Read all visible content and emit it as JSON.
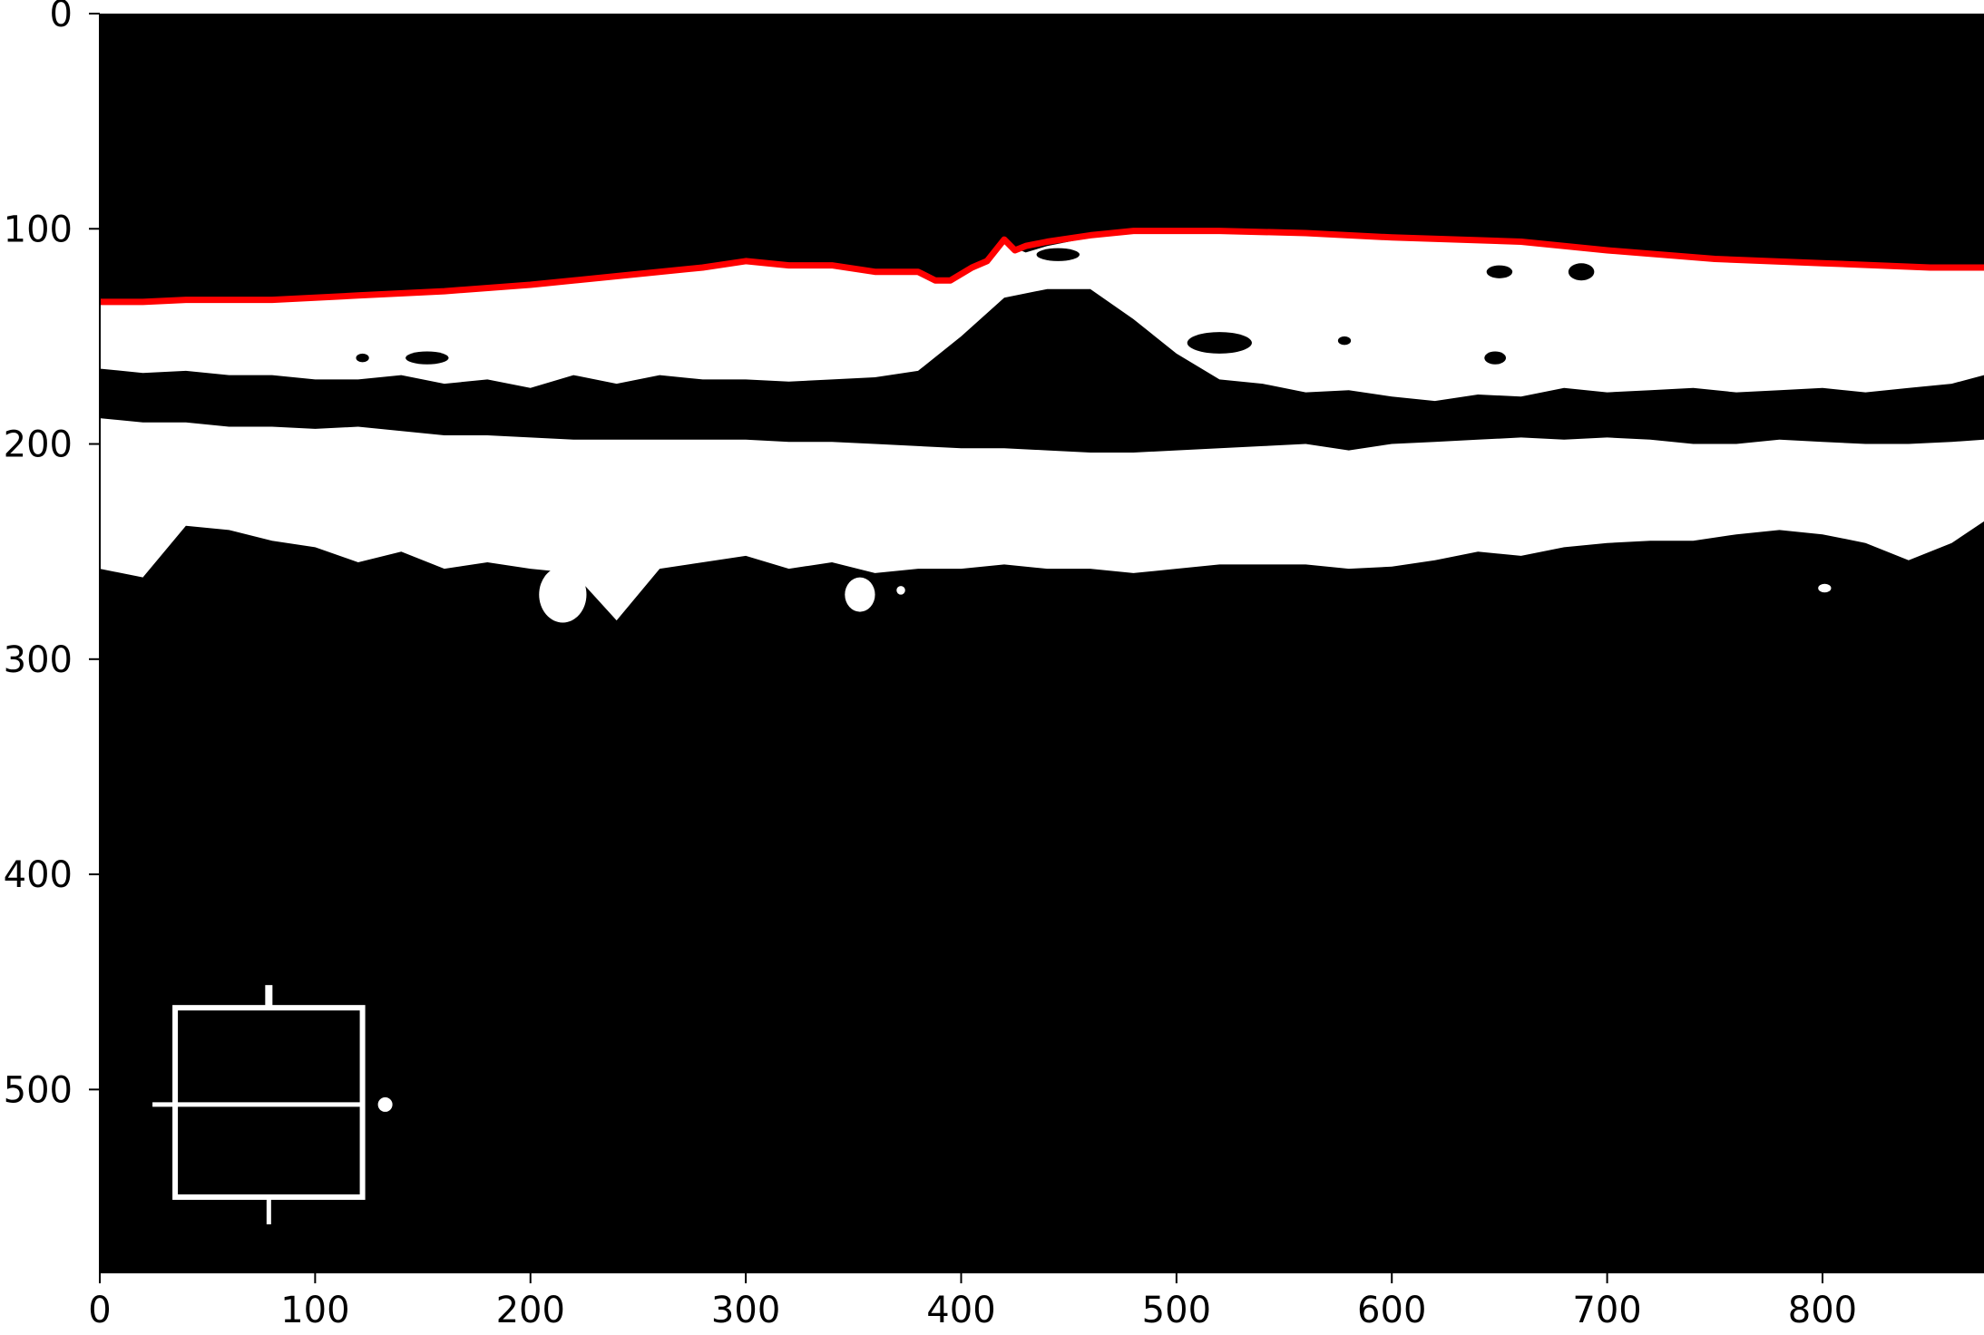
{
  "chart_data": {
    "type": "heatmap",
    "title": "",
    "xlabel": "",
    "ylabel": "",
    "xlim": [
      0,
      875
    ],
    "ylim": [
      585,
      0
    ],
    "y_inverted": true,
    "grid": false,
    "legend": "none",
    "colormap": [
      "#000000",
      "#ffffff"
    ],
    "xticks": [
      0,
      100,
      200,
      300,
      400,
      500,
      600,
      700,
      800
    ],
    "xtick_labels": [
      "0",
      "100",
      "200",
      "300",
      "400",
      "500",
      "600",
      "700",
      "800"
    ],
    "yticks": [
      0,
      100,
      200,
      300,
      400,
      500
    ],
    "ytick_labels": [
      "0",
      "100",
      "200",
      "300",
      "400",
      "500"
    ],
    "boundary_line": {
      "color": "#ff0000",
      "x": [
        0,
        20,
        40,
        80,
        120,
        160,
        200,
        240,
        280,
        300,
        320,
        340,
        360,
        380,
        388,
        395,
        405,
        412,
        420,
        425,
        430,
        440,
        460,
        480,
        520,
        560,
        600,
        660,
        700,
        750,
        800,
        850,
        875
      ],
      "y": [
        134,
        134,
        133,
        133,
        131,
        129,
        126,
        122,
        118,
        115,
        117,
        117,
        120,
        120,
        124,
        124,
        118,
        115,
        105,
        110,
        108,
        106,
        103,
        101,
        101,
        102,
        104,
        106,
        110,
        114,
        116,
        118,
        118
      ]
    },
    "regions": [
      {
        "label": "upper white band",
        "value": 1,
        "top_x": [
          0,
          40,
          80,
          120,
          160,
          200,
          240,
          280,
          300,
          320,
          340,
          360,
          380,
          395,
          410,
          420,
          430,
          440,
          460,
          480,
          520,
          560,
          600,
          660,
          700,
          750,
          800,
          850,
          875
        ],
        "top_y": [
          135,
          134,
          134,
          132,
          130,
          127,
          123,
          119,
          116,
          118,
          118,
          121,
          121,
          124,
          117,
          107,
          111,
          108,
          104,
          102,
          102,
          103,
          105,
          107,
          111,
          115,
          117,
          119,
          119
        ],
        "bottom_x": [
          0,
          20,
          40,
          60,
          80,
          100,
          120,
          140,
          160,
          180,
          200,
          220,
          240,
          260,
          280,
          300,
          320,
          340,
          360,
          380,
          400,
          420,
          440,
          460,
          480,
          500,
          520,
          540,
          560,
          580,
          600,
          620,
          640,
          660,
          680,
          700,
          720,
          740,
          760,
          780,
          800,
          820,
          840,
          860,
          875
        ],
        "bottom_y": [
          165,
          167,
          166,
          168,
          168,
          170,
          170,
          168,
          172,
          170,
          174,
          168,
          172,
          168,
          170,
          170,
          171,
          170,
          169,
          166,
          150,
          132,
          128,
          128,
          142,
          158,
          170,
          172,
          176,
          175,
          178,
          180,
          177,
          178,
          174,
          176,
          175,
          174,
          176,
          175,
          174,
          176,
          174,
          172,
          168
        ]
      },
      {
        "label": "lower white band",
        "value": 1,
        "top_x": [
          0,
          20,
          40,
          60,
          80,
          100,
          120,
          140,
          160,
          180,
          200,
          220,
          240,
          260,
          280,
          300,
          320,
          340,
          360,
          380,
          400,
          420,
          440,
          460,
          480,
          500,
          520,
          540,
          560,
          580,
          600,
          620,
          640,
          660,
          680,
          700,
          720,
          740,
          760,
          780,
          800,
          820,
          840,
          860,
          875
        ],
        "top_y": [
          188,
          190,
          190,
          192,
          192,
          193,
          192,
          194,
          196,
          196,
          197,
          198,
          198,
          198,
          198,
          198,
          199,
          199,
          200,
          201,
          202,
          202,
          203,
          204,
          204,
          203,
          202,
          201,
          200,
          203,
          200,
          199,
          198,
          197,
          198,
          197,
          198,
          200,
          200,
          198,
          199,
          200,
          200,
          199,
          198
        ],
        "bottom_x": [
          0,
          20,
          40,
          60,
          80,
          100,
          120,
          140,
          160,
          180,
          200,
          220,
          240,
          260,
          280,
          300,
          320,
          340,
          360,
          380,
          400,
          420,
          440,
          460,
          480,
          500,
          520,
          540,
          560,
          580,
          600,
          620,
          640,
          660,
          680,
          700,
          720,
          740,
          760,
          780,
          800,
          820,
          840,
          860,
          875
        ],
        "bottom_y": [
          258,
          262,
          238,
          240,
          245,
          248,
          255,
          250,
          258,
          255,
          258,
          260,
          282,
          258,
          255,
          252,
          258,
          255,
          260,
          258,
          258,
          256,
          258,
          258,
          260,
          258,
          256,
          256,
          256,
          258,
          257,
          254,
          250,
          252,
          248,
          246,
          245,
          245,
          242,
          240,
          242,
          246,
          254,
          246,
          236
        ]
      }
    ],
    "blobs": [
      {
        "label": "black blob",
        "value": 0,
        "x": 650,
        "y": 120,
        "rx": 6,
        "ry": 3
      },
      {
        "label": "black blob",
        "value": 0,
        "x": 688,
        "y": 120,
        "rx": 6,
        "ry": 4
      },
      {
        "label": "black blob",
        "value": 0,
        "x": 520,
        "y": 153,
        "rx": 15,
        "ry": 5
      },
      {
        "label": "black blob",
        "value": 0,
        "x": 648,
        "y": 160,
        "rx": 5,
        "ry": 3
      },
      {
        "label": "black blob",
        "value": 0,
        "x": 578,
        "y": 152,
        "rx": 3,
        "ry": 2
      },
      {
        "label": "black blob",
        "value": 0,
        "x": 445,
        "y": 112,
        "rx": 10,
        "ry": 3
      },
      {
        "label": "black blob",
        "value": 0,
        "x": 122,
        "y": 160,
        "rx": 3,
        "ry": 2
      },
      {
        "label": "black blob",
        "value": 0,
        "x": 152,
        "y": 160,
        "rx": 10,
        "ry": 3
      },
      {
        "label": "white blob",
        "value": 1,
        "x": 353,
        "y": 270,
        "rx": 7,
        "ry": 8
      },
      {
        "label": "white blob",
        "value": 1,
        "x": 215,
        "y": 270,
        "rx": 11,
        "ry": 13
      },
      {
        "label": "white blob",
        "value": 1,
        "x": 801,
        "y": 267,
        "rx": 3,
        "ry": 2
      },
      {
        "label": "white blob",
        "value": 1,
        "x": 372,
        "y": 268,
        "rx": 2,
        "ry": 2
      }
    ],
    "marker": {
      "label": "white rectangle outline",
      "value": 1,
      "x_range": [
        35,
        122
      ],
      "y_range": [
        462,
        550
      ],
      "divider_y": 507
    }
  }
}
